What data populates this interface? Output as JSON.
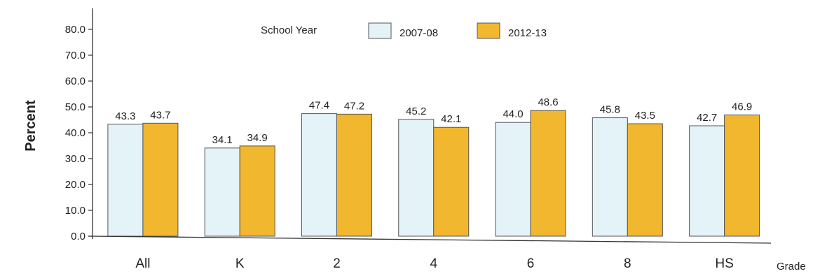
{
  "chart_data": {
    "type": "bar",
    "categories": [
      "All",
      "K",
      "2",
      "4",
      "6",
      "8",
      "HS"
    ],
    "series": [
      {
        "name": "2007-08",
        "values": [
          43.3,
          34.1,
          47.4,
          45.2,
          44.0,
          45.8,
          42.7
        ],
        "color": "#e3f3f7"
      },
      {
        "name": "2012-13",
        "values": [
          43.7,
          34.9,
          47.2,
          42.1,
          48.6,
          43.5,
          46.9
        ],
        "color": "#f1b72e"
      }
    ],
    "value_labels": [
      [
        "43.3",
        "34.1",
        "47.4",
        "45.2",
        "44.0",
        "45.8",
        "42.7"
      ],
      [
        "43.7",
        "34.9",
        "47.2",
        "42.1",
        "48.6",
        "43.5",
        "46.9"
      ]
    ],
    "legend_title": "School Year",
    "legend_position": "top-center",
    "xlabel": "Grade",
    "ylabel": "Percent",
    "ylim": [
      0,
      80
    ],
    "yticks": [
      "0.0",
      "10.0",
      "20.0",
      "30.0",
      "40.0",
      "50.0",
      "60.0",
      "70.0",
      "80.0"
    ],
    "grid": false
  }
}
